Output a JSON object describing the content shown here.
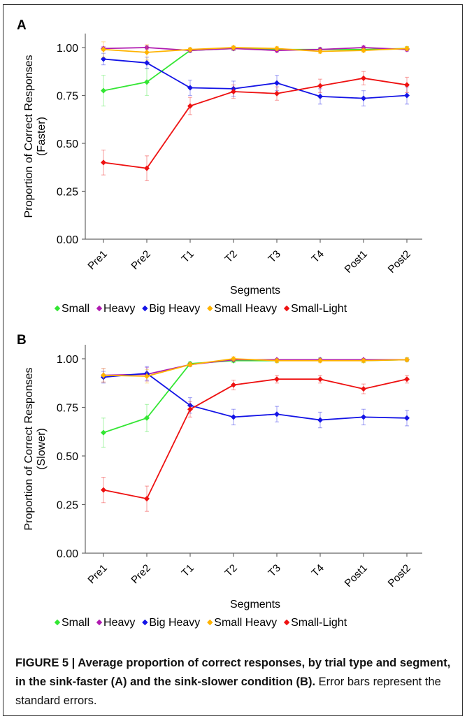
{
  "chart_data": [
    {
      "panel": "A",
      "type": "line",
      "categories": [
        "Pre1",
        "Pre2",
        "T1",
        "T2",
        "T3",
        "T4",
        "Post1",
        "Post2"
      ],
      "xlabel": "Segments",
      "ylabel_line1": "Proportion of Correct Responses",
      "ylabel_line2": "(Faster)",
      "ylim": [
        0,
        1.0
      ],
      "yticks": [
        "0.00",
        "0.25",
        "0.50",
        "0.75",
        "1.00"
      ],
      "legend_position": "bottom",
      "series": [
        {
          "name": "Small",
          "color": "#33e633",
          "values": [
            0.775,
            0.82,
            0.985,
            0.995,
            0.99,
            0.99,
            0.99,
            0.995
          ],
          "errors": [
            0.08,
            0.07,
            0.01,
            0.01,
            0.01,
            0.01,
            0.01,
            0.01
          ]
        },
        {
          "name": "Heavy",
          "color": "#b01ab0",
          "values": [
            0.995,
            1.0,
            0.985,
            0.995,
            0.985,
            0.99,
            1.0,
            0.99
          ],
          "errors": [
            0.01,
            0.01,
            0.01,
            0.01,
            0.01,
            0.01,
            0.01,
            0.01
          ]
        },
        {
          "name": "Big Heavy",
          "color": "#1414e6",
          "values": [
            0.94,
            0.92,
            0.79,
            0.785,
            0.815,
            0.745,
            0.735,
            0.75
          ],
          "errors": [
            0.03,
            0.03,
            0.04,
            0.04,
            0.04,
            0.04,
            0.04,
            0.045
          ]
        },
        {
          "name": "Small Heavy",
          "color": "#ffb300",
          "values": [
            0.99,
            0.975,
            0.99,
            1.0,
            0.995,
            0.98,
            0.985,
            0.995
          ],
          "errors": [
            0.04,
            0.04,
            0.01,
            0.01,
            0.01,
            0.01,
            0.01,
            0.01
          ]
        },
        {
          "name": "Small-Light",
          "color": "#ee1111",
          "values": [
            0.4,
            0.37,
            0.695,
            0.77,
            0.76,
            0.8,
            0.84,
            0.805
          ],
          "errors": [
            0.065,
            0.065,
            0.045,
            0.035,
            0.035,
            0.035,
            0.035,
            0.04
          ]
        }
      ]
    },
    {
      "panel": "B",
      "type": "line",
      "categories": [
        "Pre1",
        "Pre2",
        "T1",
        "T2",
        "T3",
        "T4",
        "Post1",
        "Post2"
      ],
      "xlabel": "Segments",
      "ylabel_line1": "Proportion of Correct Responses",
      "ylabel_line2": "(Slower)",
      "ylim": [
        0,
        1.0
      ],
      "yticks": [
        "0.00",
        "0.25",
        "0.50",
        "0.75",
        "1.00"
      ],
      "legend_position": "bottom",
      "series": [
        {
          "name": "Small",
          "color": "#33e633",
          "values": [
            0.62,
            0.695,
            0.975,
            0.99,
            0.99,
            0.995,
            0.99,
            0.995
          ],
          "errors": [
            0.075,
            0.07,
            0.01,
            0.01,
            0.01,
            0.01,
            0.01,
            0.01
          ]
        },
        {
          "name": "Heavy",
          "color": "#b01ab0",
          "values": [
            0.915,
            0.92,
            0.97,
            0.995,
            0.995,
            0.995,
            0.995,
            0.995
          ],
          "errors": [
            0.035,
            0.035,
            0.01,
            0.005,
            0.005,
            0.005,
            0.005,
            0.005
          ]
        },
        {
          "name": "Big Heavy",
          "color": "#1414e6",
          "values": [
            0.905,
            0.925,
            0.76,
            0.7,
            0.715,
            0.685,
            0.7,
            0.695
          ],
          "errors": [
            0.03,
            0.035,
            0.04,
            0.04,
            0.04,
            0.04,
            0.04,
            0.04
          ]
        },
        {
          "name": "Small Heavy",
          "color": "#ffb300",
          "values": [
            0.915,
            0.91,
            0.97,
            1.0,
            0.99,
            0.99,
            0.99,
            0.995
          ],
          "errors": [
            0.035,
            0.035,
            0.01,
            0.01,
            0.01,
            0.01,
            0.01,
            0.01
          ]
        },
        {
          "name": "Small-Light",
          "color": "#ee1111",
          "values": [
            0.325,
            0.28,
            0.74,
            0.865,
            0.895,
            0.895,
            0.845,
            0.895
          ],
          "errors": [
            0.065,
            0.065,
            0.04,
            0.025,
            0.02,
            0.02,
            0.025,
            0.02
          ]
        }
      ]
    }
  ],
  "caption": {
    "lead": "FIGURE 5 | Average proportion of correct responses, by trial type and segment, in the sink-faster (A) and the sink-slower condition (B).",
    "rest": " Error bars represent the standard errors."
  }
}
